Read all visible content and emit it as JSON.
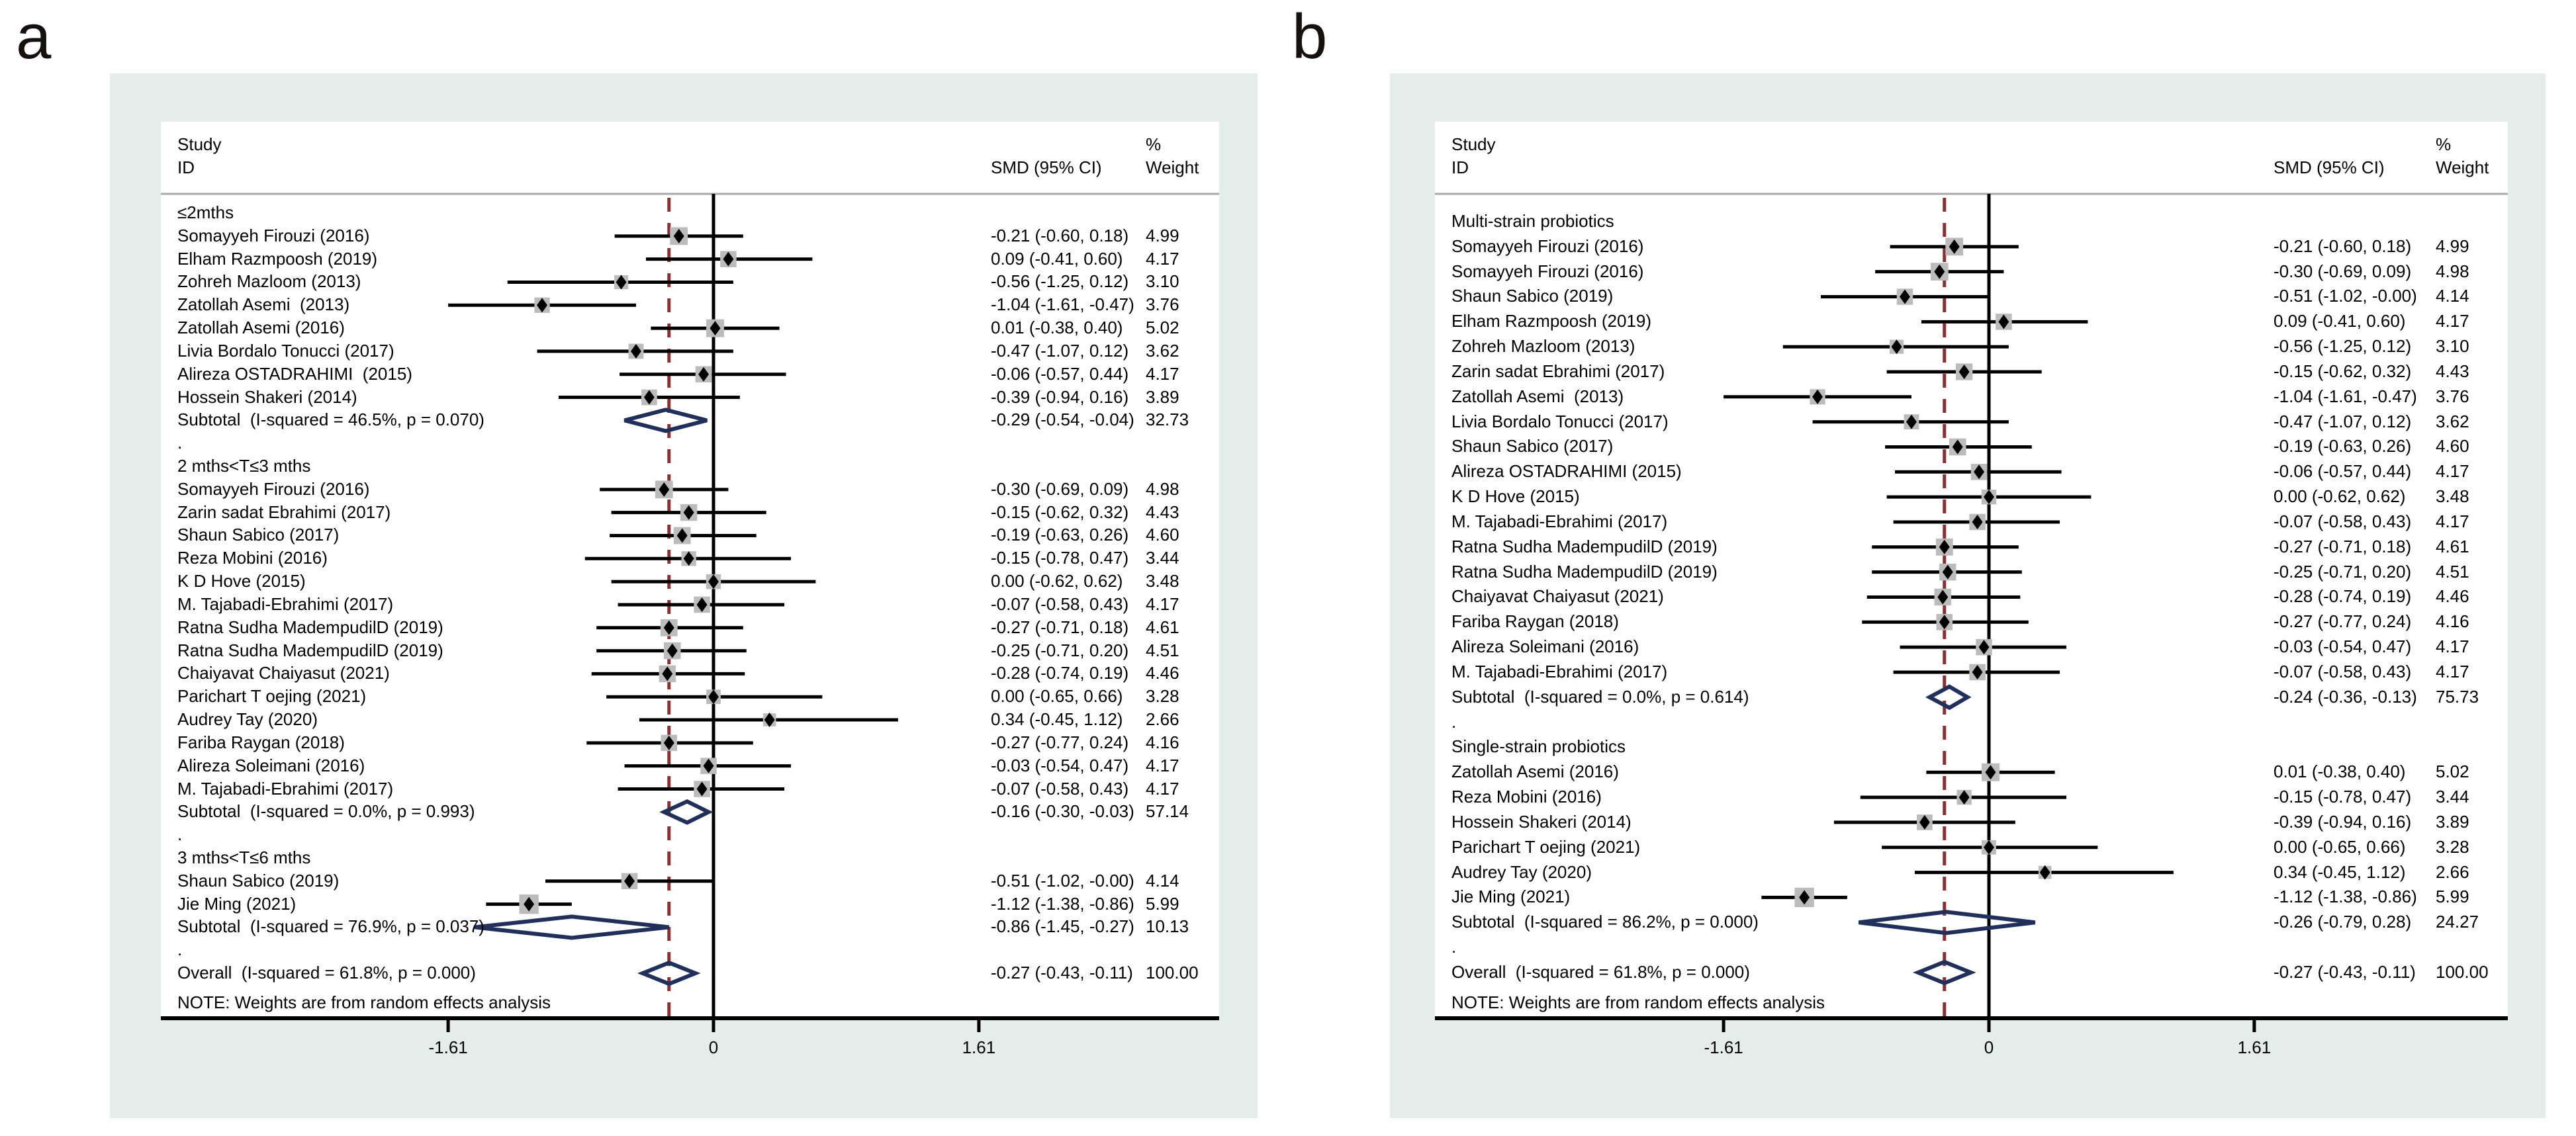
{
  "figure": {
    "note_shared": "NOTE: Weights are from random effects analysis",
    "colors": {
      "panel_background": "#e5edeb",
      "plot_background": "#ffffff",
      "ci_line": "#000000",
      "weight_box": "#bcbcbc",
      "point_marker": "#000000",
      "pooled_diamond": "#21305a",
      "overall_dashed_line": "#8b2f32",
      "axis_line": "#000000",
      "header_rule": "#a9a9a9"
    }
  },
  "chart_data": [
    {
      "type": "forest",
      "label": "a",
      "column_headers": {
        "study_line1": "Study",
        "study_line2": "ID",
        "smd": "SMD (95% CI)",
        "pct": "%",
        "weight": "Weight"
      },
      "note": "NOTE: Weights are from random effects analysis",
      "axis": {
        "ticks": [
          {
            "value": -1.61,
            "label": "-1.61"
          },
          {
            "value": 0,
            "label": "0"
          },
          {
            "value": 1.61,
            "label": "1.61"
          }
        ]
      },
      "groups": [
        {
          "name": "≤2mths",
          "studies": [
            {
              "name": "Somayyeh Firouzi (2016)",
              "est": -0.21,
              "lo": -0.6,
              "hi": 0.18,
              "ci": "-0.21 (-0.60, 0.18)",
              "w": "4.99"
            },
            {
              "name": "Elham Razmpoosh (2019)",
              "est": 0.09,
              "lo": -0.41,
              "hi": 0.6,
              "ci": "0.09 (-0.41, 0.60)",
              "w": "4.17"
            },
            {
              "name": "Zohreh Mazloom (2013)",
              "est": -0.56,
              "lo": -1.25,
              "hi": 0.12,
              "ci": "-0.56 (-1.25, 0.12)",
              "w": "3.10"
            },
            {
              "name": "Zatollah Asemi  (2013)",
              "est": -1.04,
              "lo": -1.61,
              "hi": -0.47,
              "ci": "-1.04 (-1.61, -0.47)",
              "w": "3.76"
            },
            {
              "name": "Zatollah Asemi (2016)",
              "est": 0.01,
              "lo": -0.38,
              "hi": 0.4,
              "ci": "0.01 (-0.38, 0.40)",
              "w": "5.02"
            },
            {
              "name": "Livia Bordalo Tonucci (2017)",
              "est": -0.47,
              "lo": -1.07,
              "hi": 0.12,
              "ci": "-0.47 (-1.07, 0.12)",
              "w": "3.62"
            },
            {
              "name": "Alireza OSTADRAHIMI  (2015)",
              "est": -0.06,
              "lo": -0.57,
              "hi": 0.44,
              "ci": "-0.06 (-0.57, 0.44)",
              "w": "4.17"
            },
            {
              "name": "Hossein Shakeri (2014)",
              "est": -0.39,
              "lo": -0.94,
              "hi": 0.16,
              "ci": "-0.39 (-0.94, 0.16)",
              "w": "3.89"
            }
          ],
          "subtotal": {
            "name": "Subtotal  (I-squared = 46.5%, p = 0.070)",
            "est": -0.29,
            "lo": -0.54,
            "hi": -0.04,
            "ci": "-0.29 (-0.54, -0.04)",
            "w": "32.73"
          }
        },
        {
          "name": "2 mths<T≤3 mths",
          "studies": [
            {
              "name": "Somayyeh Firouzi (2016)",
              "est": -0.3,
              "lo": -0.69,
              "hi": 0.09,
              "ci": "-0.30 (-0.69, 0.09)",
              "w": "4.98"
            },
            {
              "name": "Zarin sadat Ebrahimi (2017)",
              "est": -0.15,
              "lo": -0.62,
              "hi": 0.32,
              "ci": "-0.15 (-0.62, 0.32)",
              "w": "4.43"
            },
            {
              "name": "Shaun Sabico (2017)",
              "est": -0.19,
              "lo": -0.63,
              "hi": 0.26,
              "ci": "-0.19 (-0.63, 0.26)",
              "w": "4.60"
            },
            {
              "name": "Reza Mobini (2016)",
              "est": -0.15,
              "lo": -0.78,
              "hi": 0.47,
              "ci": "-0.15 (-0.78, 0.47)",
              "w": "3.44"
            },
            {
              "name": "K D Hove (2015)",
              "est": 0.0,
              "lo": -0.62,
              "hi": 0.62,
              "ci": "0.00 (-0.62, 0.62)",
              "w": "3.48"
            },
            {
              "name": "M. Tajabadi-Ebrahimi (2017)",
              "est": -0.07,
              "lo": -0.58,
              "hi": 0.43,
              "ci": "-0.07 (-0.58, 0.43)",
              "w": "4.17"
            },
            {
              "name": "Ratna Sudha MadempudilD (2019)",
              "est": -0.27,
              "lo": -0.71,
              "hi": 0.18,
              "ci": "-0.27 (-0.71, 0.18)",
              "w": "4.61"
            },
            {
              "name": "Ratna Sudha MadempudilD (2019)",
              "est": -0.25,
              "lo": -0.71,
              "hi": 0.2,
              "ci": "-0.25 (-0.71, 0.20)",
              "w": "4.51"
            },
            {
              "name": "Chaiyavat Chaiyasut (2021)",
              "est": -0.28,
              "lo": -0.74,
              "hi": 0.19,
              "ci": "-0.28 (-0.74, 0.19)",
              "w": "4.46"
            },
            {
              "name": "Parichart T oejing (2021)",
              "est": 0.0,
              "lo": -0.65,
              "hi": 0.66,
              "ci": "0.00 (-0.65, 0.66)",
              "w": "3.28"
            },
            {
              "name": "Audrey Tay (2020)",
              "est": 0.34,
              "lo": -0.45,
              "hi": 1.12,
              "ci": "0.34 (-0.45, 1.12)",
              "w": "2.66"
            },
            {
              "name": "Fariba Raygan (2018)",
              "est": -0.27,
              "lo": -0.77,
              "hi": 0.24,
              "ci": "-0.27 (-0.77, 0.24)",
              "w": "4.16"
            },
            {
              "name": "Alireza Soleimani (2016)",
              "est": -0.03,
              "lo": -0.54,
              "hi": 0.47,
              "ci": "-0.03 (-0.54, 0.47)",
              "w": "4.17"
            },
            {
              "name": "M. Tajabadi-Ebrahimi (2017)",
              "est": -0.07,
              "lo": -0.58,
              "hi": 0.43,
              "ci": "-0.07 (-0.58, 0.43)",
              "w": "4.17"
            }
          ],
          "subtotal": {
            "name": "Subtotal  (I-squared = 0.0%, p = 0.993)",
            "est": -0.16,
            "lo": -0.3,
            "hi": -0.03,
            "ci": "-0.16 (-0.30, -0.03)",
            "w": "57.14"
          }
        },
        {
          "name": "3 mths<T≤6 mths",
          "studies": [
            {
              "name": "Shaun Sabico (2019)",
              "est": -0.51,
              "lo": -1.02,
              "hi": -0.0,
              "ci": "-0.51 (-1.02, -0.00)",
              "w": "4.14"
            },
            {
              "name": "Jie Ming (2021)",
              "est": -1.12,
              "lo": -1.38,
              "hi": -0.86,
              "ci": "-1.12 (-1.38, -0.86)",
              "w": "5.99"
            }
          ],
          "subtotal": {
            "name": "Subtotal  (I-squared = 76.9%, p = 0.037)",
            "est": -0.86,
            "lo": -1.45,
            "hi": -0.27,
            "ci": "-0.86 (-1.45, -0.27)",
            "w": "10.13"
          }
        }
      ],
      "overall": {
        "name": "Overall  (I-squared = 61.8%, p = 0.000)",
        "est": -0.27,
        "lo": -0.43,
        "hi": -0.11,
        "ci": "-0.27 (-0.43, -0.11)",
        "w": "100.00"
      }
    },
    {
      "type": "forest",
      "label": "b",
      "column_headers": {
        "study_line1": "Study",
        "study_line2": "ID",
        "smd": "SMD (95% CI)",
        "pct": "%",
        "weight": "Weight"
      },
      "note": "NOTE: Weights are from random effects analysis",
      "axis": {
        "ticks": [
          {
            "value": -1.61,
            "label": "-1.61"
          },
          {
            "value": 0,
            "label": "0"
          },
          {
            "value": 1.61,
            "label": "1.61"
          }
        ]
      },
      "groups": [
        {
          "name": "Multi-strain probiotics",
          "studies": [
            {
              "name": "Somayyeh Firouzi (2016)",
              "est": -0.21,
              "lo": -0.6,
              "hi": 0.18,
              "ci": "-0.21 (-0.60, 0.18)",
              "w": "4.99"
            },
            {
              "name": "Somayyeh Firouzi (2016)",
              "est": -0.3,
              "lo": -0.69,
              "hi": 0.09,
              "ci": "-0.30 (-0.69, 0.09)",
              "w": "4.98"
            },
            {
              "name": "Shaun Sabico (2019)",
              "est": -0.51,
              "lo": -1.02,
              "hi": -0.0,
              "ci": "-0.51 (-1.02, -0.00)",
              "w": "4.14"
            },
            {
              "name": "Elham Razmpoosh (2019)",
              "est": 0.09,
              "lo": -0.41,
              "hi": 0.6,
              "ci": "0.09 (-0.41, 0.60)",
              "w": "4.17"
            },
            {
              "name": "Zohreh Mazloom (2013)",
              "est": -0.56,
              "lo": -1.25,
              "hi": 0.12,
              "ci": "-0.56 (-1.25, 0.12)",
              "w": "3.10"
            },
            {
              "name": "Zarin sadat Ebrahimi (2017)",
              "est": -0.15,
              "lo": -0.62,
              "hi": 0.32,
              "ci": "-0.15 (-0.62, 0.32)",
              "w": "4.43"
            },
            {
              "name": "Zatollah Asemi  (2013)",
              "est": -1.04,
              "lo": -1.61,
              "hi": -0.47,
              "ci": "-1.04 (-1.61, -0.47)",
              "w": "3.76"
            },
            {
              "name": "Livia Bordalo Tonucci (2017)",
              "est": -0.47,
              "lo": -1.07,
              "hi": 0.12,
              "ci": "-0.47 (-1.07, 0.12)",
              "w": "3.62"
            },
            {
              "name": "Shaun Sabico (2017)",
              "est": -0.19,
              "lo": -0.63,
              "hi": 0.26,
              "ci": "-0.19 (-0.63, 0.26)",
              "w": "4.60"
            },
            {
              "name": "Alireza OSTADRAHIMI (2015)",
              "est": -0.06,
              "lo": -0.57,
              "hi": 0.44,
              "ci": "-0.06 (-0.57, 0.44)",
              "w": "4.17"
            },
            {
              "name": "K D Hove (2015)",
              "est": 0.0,
              "lo": -0.62,
              "hi": 0.62,
              "ci": "0.00 (-0.62, 0.62)",
              "w": "3.48"
            },
            {
              "name": "M. Tajabadi-Ebrahimi (2017)",
              "est": -0.07,
              "lo": -0.58,
              "hi": 0.43,
              "ci": "-0.07 (-0.58, 0.43)",
              "w": "4.17"
            },
            {
              "name": "Ratna Sudha MadempudilD (2019)",
              "est": -0.27,
              "lo": -0.71,
              "hi": 0.18,
              "ci": "-0.27 (-0.71, 0.18)",
              "w": "4.61"
            },
            {
              "name": "Ratna Sudha MadempudilD (2019)",
              "est": -0.25,
              "lo": -0.71,
              "hi": 0.2,
              "ci": "-0.25 (-0.71, 0.20)",
              "w": "4.51"
            },
            {
              "name": "Chaiyavat Chaiyasut (2021)",
              "est": -0.28,
              "lo": -0.74,
              "hi": 0.19,
              "ci": "-0.28 (-0.74, 0.19)",
              "w": "4.46"
            },
            {
              "name": "Fariba Raygan (2018)",
              "est": -0.27,
              "lo": -0.77,
              "hi": 0.24,
              "ci": "-0.27 (-0.77, 0.24)",
              "w": "4.16"
            },
            {
              "name": "Alireza Soleimani (2016)",
              "est": -0.03,
              "lo": -0.54,
              "hi": 0.47,
              "ci": "-0.03 (-0.54, 0.47)",
              "w": "4.17"
            },
            {
              "name": "M. Tajabadi-Ebrahimi (2017)",
              "est": -0.07,
              "lo": -0.58,
              "hi": 0.43,
              "ci": "-0.07 (-0.58, 0.43)",
              "w": "4.17"
            }
          ],
          "subtotal": {
            "name": "Subtotal  (I-squared = 0.0%, p = 0.614)",
            "est": -0.24,
            "lo": -0.36,
            "hi": -0.13,
            "ci": "-0.24 (-0.36, -0.13)",
            "w": "75.73"
          }
        },
        {
          "name": "Single-strain probiotics",
          "studies": [
            {
              "name": "Zatollah Asemi (2016)",
              "est": 0.01,
              "lo": -0.38,
              "hi": 0.4,
              "ci": "0.01 (-0.38, 0.40)",
              "w": "5.02"
            },
            {
              "name": "Reza Mobini (2016)",
              "est": -0.15,
              "lo": -0.78,
              "hi": 0.47,
              "ci": "-0.15 (-0.78, 0.47)",
              "w": "3.44"
            },
            {
              "name": "Hossein Shakeri (2014)",
              "est": -0.39,
              "lo": -0.94,
              "hi": 0.16,
              "ci": "-0.39 (-0.94, 0.16)",
              "w": "3.89"
            },
            {
              "name": "Parichart T oejing (2021)",
              "est": 0.0,
              "lo": -0.65,
              "hi": 0.66,
              "ci": "0.00 (-0.65, 0.66)",
              "w": "3.28"
            },
            {
              "name": "Audrey Tay (2020)",
              "est": 0.34,
              "lo": -0.45,
              "hi": 1.12,
              "ci": "0.34 (-0.45, 1.12)",
              "w": "2.66"
            },
            {
              "name": "Jie Ming (2021)",
              "est": -1.12,
              "lo": -1.38,
              "hi": -0.86,
              "ci": "-1.12 (-1.38, -0.86)",
              "w": "5.99"
            }
          ],
          "subtotal": {
            "name": "Subtotal  (I-squared = 86.2%, p = 0.000)",
            "est": -0.26,
            "lo": -0.79,
            "hi": 0.28,
            "ci": "-0.26 (-0.79, 0.28)",
            "w": "24.27"
          }
        }
      ],
      "overall": {
        "name": "Overall  (I-squared = 61.8%, p = 0.000)",
        "est": -0.27,
        "lo": -0.43,
        "hi": -0.11,
        "ci": "-0.27 (-0.43, -0.11)",
        "w": "100.00"
      }
    }
  ]
}
